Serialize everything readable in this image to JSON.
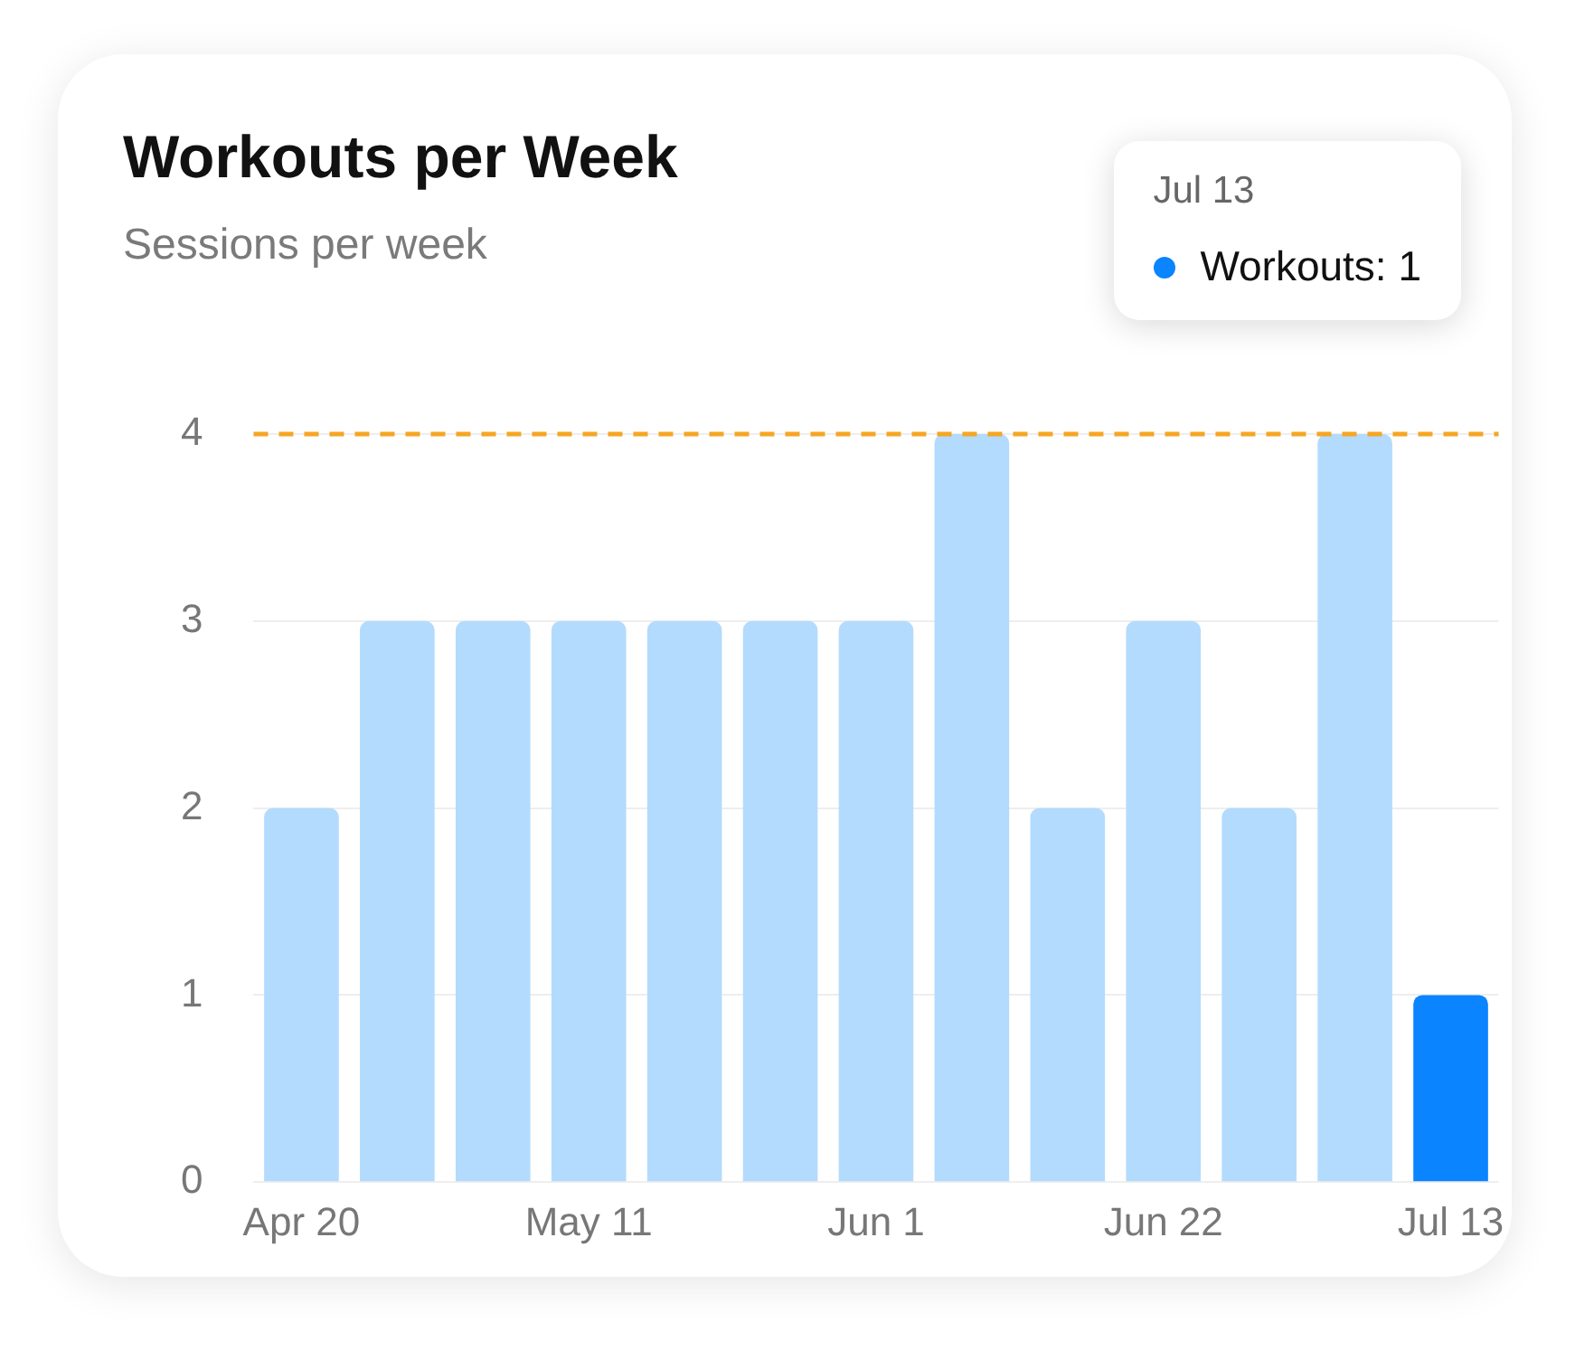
{
  "chart_data": {
    "type": "bar",
    "title": "Workouts per Week",
    "subtitle": "Sessions per week",
    "categories": [
      "Apr 20",
      null,
      null,
      "May 11",
      null,
      null,
      "Jun 1",
      null,
      null,
      "Jun 22",
      null,
      null,
      "Jul 13"
    ],
    "series": [
      {
        "values": [
          2,
          3,
          3,
          3,
          3,
          3,
          3,
          4,
          2,
          3,
          2,
          4,
          1
        ],
        "colors": [
          "#b3dbfd",
          "#b3dbfd",
          "#b3dbfd",
          "#b3dbfd",
          "#b3dbfd",
          "#b3dbfd",
          "#b3dbfd",
          "#b3dbfd",
          "#b3dbfd",
          "#b3dbfd",
          "#b3dbfd",
          "#b3dbfd",
          "#0a84ff"
        ]
      }
    ],
    "ylim": [
      0,
      4
    ],
    "yticks": [
      0,
      1,
      2,
      3,
      4
    ],
    "grid": "y",
    "legend": false,
    "ref_lines": [
      {
        "axis": "y",
        "value": 4,
        "color": "#f5a623",
        "line_style": "dashed"
      }
    ],
    "annotations": [
      "Jul 13",
      "Workouts: 1"
    ]
  }
}
